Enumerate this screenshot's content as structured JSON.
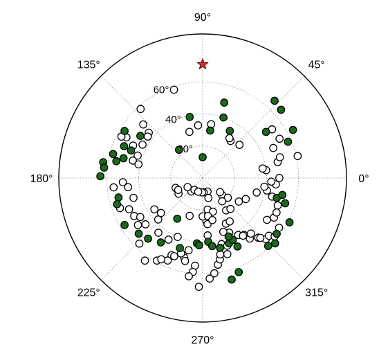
{
  "chart_data": {
    "type": "scatter",
    "coordinate_system": "polar",
    "angle_unit": "degrees",
    "angle_ticks": [
      "0°",
      "45°",
      "90°",
      "135°",
      "180°",
      "225°",
      "270°",
      "315°"
    ],
    "angle_tick_values": [
      0,
      45,
      90,
      135,
      180,
      225,
      270,
      315
    ],
    "radial_ticks": [
      "20°",
      "40°",
      "60°"
    ],
    "radial_tick_values": [
      20,
      40,
      60
    ],
    "rlim": [
      0,
      90
    ],
    "grid": true,
    "legend": "none",
    "colors": {
      "filled": "#1a6b1a",
      "open": "#ffffff",
      "star": "#e8232a",
      "edge": "#000000",
      "grid": "#888888"
    },
    "series": [
      {
        "marker": "star",
        "points": [
          [
            90,
            71
          ]
        ]
      },
      {
        "marker": "filled-circle",
        "points": [
          [
            47,
            66
          ],
          [
            74,
            49
          ],
          [
            81,
            30
          ],
          [
            90,
            13
          ],
          [
            102,
            39
          ],
          [
            130,
            23
          ],
          [
            149,
            57
          ],
          [
            165,
            58
          ],
          [
            158,
            53
          ],
          [
            159,
            48
          ],
          [
            146,
            47
          ],
          [
            171,
            63
          ],
          [
            179,
            64
          ],
          [
            174,
            62
          ],
          [
            169,
            55
          ],
          [
            166,
            51
          ],
          [
            193,
            54
          ],
          [
            197,
            56
          ],
          [
            211,
            57
          ],
          [
            221,
            53
          ],
          [
            228,
            51
          ],
          [
            237,
            48
          ],
          [
            252,
            46
          ],
          [
            238,
            30
          ],
          [
            265,
            41
          ],
          [
            267,
            42
          ],
          [
            275,
            40
          ],
          [
            278,
            43
          ],
          [
            284,
            45
          ],
          [
            292,
            44
          ],
          [
            297,
            48
          ],
          [
            296,
            43
          ],
          [
            294,
            40
          ],
          [
            314,
            59
          ],
          [
            323,
            58
          ],
          [
            343,
            54
          ],
          [
            345,
            48
          ],
          [
            348,
            51
          ],
          [
            286,
            66
          ],
          [
            291,
            63
          ],
          [
            60,
            34
          ],
          [
            71,
            40
          ],
          [
            28,
            64
          ],
          [
            41,
            65
          ],
          [
            36,
            49
          ],
          [
            23,
            58
          ],
          [
            333,
            61
          ],
          [
            318,
            61
          ]
        ]
      },
      {
        "marker": "open-circle",
        "points": [
          [
            108,
            58
          ],
          [
            132,
            58
          ],
          [
            152,
            54
          ],
          [
            153,
            57
          ],
          [
            138,
            50
          ],
          [
            140,
            44
          ],
          [
            155,
            48
          ],
          [
            143,
            43
          ],
          [
            151,
            43
          ],
          [
            161,
            43
          ],
          [
            166,
            45
          ],
          [
            168,
            41
          ],
          [
            183,
            50
          ],
          [
            187,
            47
          ],
          [
            186,
            56
          ],
          [
            200,
            55
          ],
          [
            196,
            45
          ],
          [
            203,
            50
          ],
          [
            209,
            49
          ],
          [
            212,
            46
          ],
          [
            216,
            50
          ],
          [
            223,
            38
          ],
          [
            213,
            36
          ],
          [
            220,
            34
          ],
          [
            241,
            44
          ],
          [
            247,
            40
          ],
          [
            231,
            44
          ],
          [
            257,
            51
          ],
          [
            259,
            46
          ],
          [
            248,
            52
          ],
          [
            250,
            52
          ],
          [
            254,
            49
          ],
          [
            265,
            55
          ],
          [
            264,
            59
          ],
          [
            262,
            62
          ],
          [
            268,
            68
          ],
          [
            274,
            63
          ],
          [
            277,
            60
          ],
          [
            280,
            55
          ],
          [
            282,
            52
          ],
          [
            283,
            49
          ],
          [
            288,
            50
          ],
          [
            286,
            43
          ],
          [
            290,
            45
          ],
          [
            275,
            36
          ],
          [
            275,
            27
          ],
          [
            279,
            20
          ],
          [
            287,
            22
          ],
          [
            296,
            38
          ],
          [
            302,
            42
          ],
          [
            306,
            44
          ],
          [
            308,
            48
          ],
          [
            305,
            44
          ],
          [
            311,
            46
          ],
          [
            313,
            51
          ],
          [
            316,
            55
          ],
          [
            314,
            52
          ],
          [
            319,
            55
          ],
          [
            321,
            58
          ],
          [
            327,
            48
          ],
          [
            327,
            57
          ],
          [
            331,
            51
          ],
          [
            335,
            51
          ],
          [
            340,
            50
          ],
          [
            345,
            45
          ],
          [
            345,
            35
          ],
          [
            349,
            41
          ],
          [
            352,
            39
          ],
          [
            355,
            46
          ],
          [
            357,
            43
          ],
          [
            7,
            40
          ],
          [
            9,
            38
          ],
          [
            12,
            48
          ],
          [
            15,
            50
          ],
          [
            13,
            61
          ],
          [
            23,
            48
          ],
          [
            27,
            54
          ],
          [
            35,
            53
          ],
          [
            42,
            31
          ],
          [
            53,
            29
          ],
          [
            56,
            30
          ],
          [
            81,
            34
          ],
          [
            106,
            30
          ],
          [
            95,
            33
          ],
          [
            213,
            18
          ],
          [
            200,
            18
          ],
          [
            206,
            17
          ],
          [
            230,
            11
          ],
          [
            211,
            11
          ],
          [
            235,
            9
          ],
          [
            290,
            9
          ],
          [
            286,
            13
          ],
          [
            319,
            16
          ],
          [
            321,
            14
          ],
          [
            322,
            20
          ],
          [
            274,
            9
          ],
          [
            267,
            9
          ],
          [
            252,
            9
          ],
          [
            251,
            25
          ],
          [
            270,
            24
          ],
          [
            276,
            29
          ],
          [
            278,
            24
          ],
          [
            283,
            27
          ],
          [
            310,
            19
          ],
          [
            306,
            25
          ],
          [
            327,
            27
          ],
          [
            334,
            30
          ],
          [
            312,
            26
          ],
          [
            297,
            32
          ],
          [
            291,
            36
          ],
          [
            302,
            32
          ],
          [
            0,
            48
          ],
          [
            219,
            46
          ],
          [
            226,
            57
          ],
          [
            235,
            63
          ],
          [
            241,
            59
          ],
          [
            247,
            56
          ],
          [
            243,
            57
          ],
          [
            258,
            53
          ]
        ]
      }
    ]
  }
}
